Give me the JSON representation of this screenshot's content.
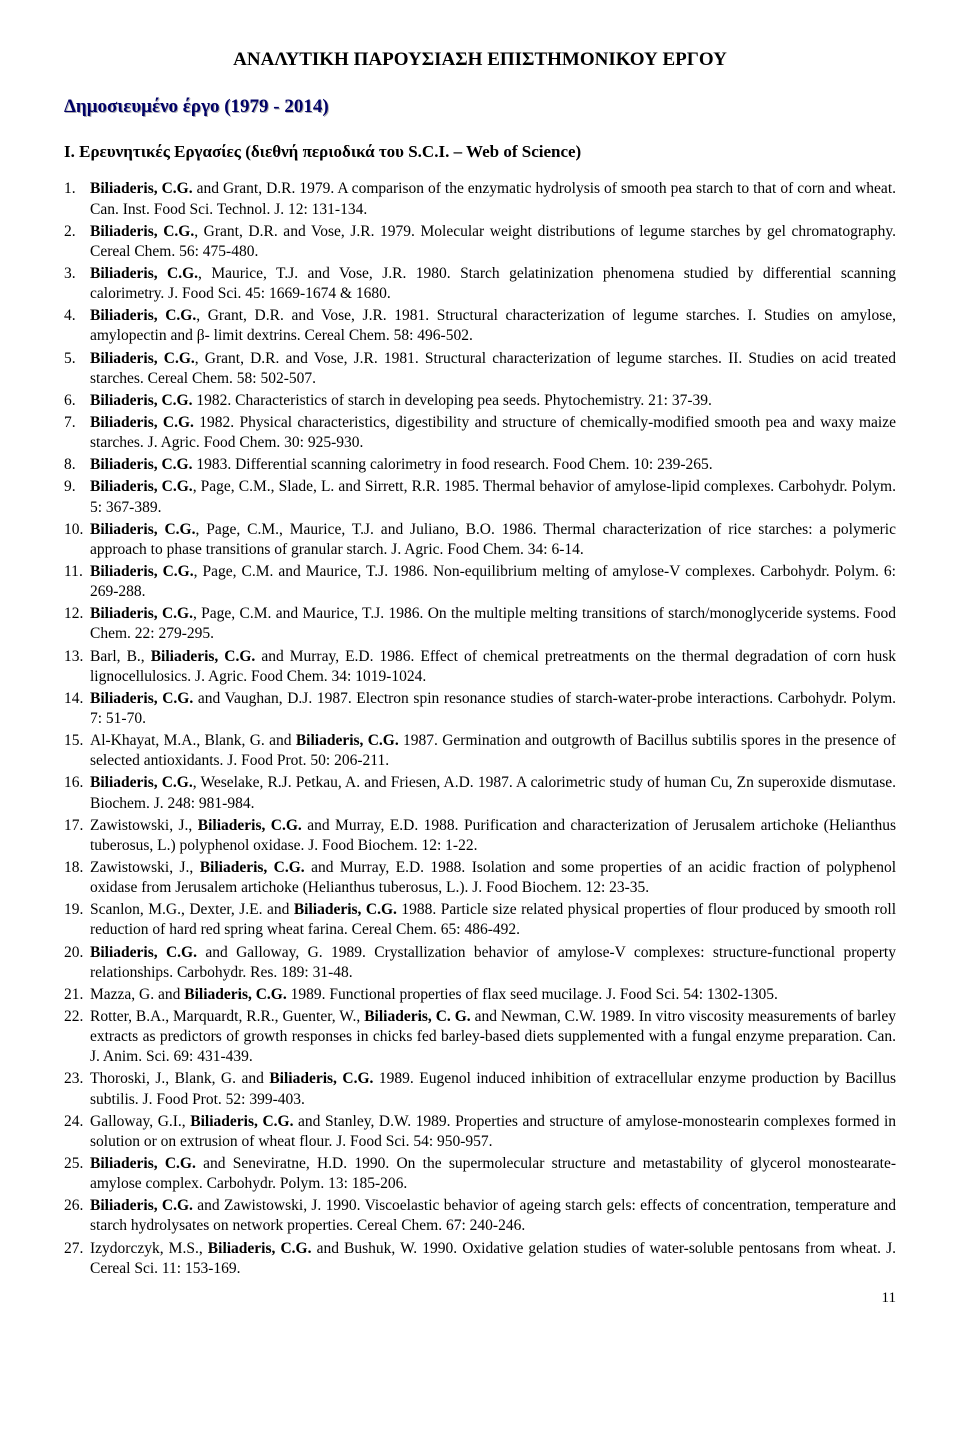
{
  "title": "ΑΝΑΛΥΤΙΚΗ ΠΑΡΟΥΣΙΑΣΗ ΕΠΙΣΤΗΜΟΝΙΚΟΥ ΕΡΓΟΥ",
  "subtitle": "Δημοσιευμένο έργο  (1979 - 2014)",
  "section_heading": "I. Ερευνητικές Εργασίες (διεθνή περιοδικά του S.C.I. – Web of Science)",
  "page_number": "11",
  "references": [
    "<b>Biliaderis, C.G.</b> and Grant, D.R. 1979. A comparison of the enzymatic hydrolysis of smooth pea starch to that of corn and wheat. Can. Inst. Food Sci. Technol. J. 12: 131-134.",
    "<b>Biliaderis, C.G.</b>, Grant, D.R. and Vose, J.R. 1979. Molecular weight distributions of legume starches by gel chromatography. Cereal Chem. 56: 475-480.",
    "<b>Biliaderis, C.G.</b>, Maurice, T.J. and Vose, J.R. 1980. Starch gelatinization phenomena studied by differential scanning calorimetry. J. Food Sci. 45: 1669-1674 &amp; 1680.",
    "<b>Biliaderis, C.G.</b>, Grant, D.R. and Vose, J.R. 1981. Structural characterization of legume starches. I. Studies on amylose, amylopectin and β- limit dextrins. Cereal Chem. 58: 496-502.",
    "<b>Biliaderis, C.G.</b>, Grant, D.R. and Vose, J.R. 1981. Structural characterization of legume starches. II. Studies on acid treated starches. Cereal Chem. 58: 502-507.",
    "<b>Biliaderis, C.G.</b> 1982. Characteristics of starch in developing pea seeds. Phytochemistry. 21: 37-39.",
    "<b>Biliaderis, C.G.</b> 1982. Physical characteristics, digestibility and structure of chemically-modified smooth pea and waxy maize starches. J. Agric. Food Chem. 30: 925-930.",
    "<b>Biliaderis, C.G.</b> 1983. Differential scanning calorimetry in food research. Food Chem. 10: 239-265.",
    "<b>Biliaderis, C.G.</b>, Page, C.M., Slade, L. and Sirrett, R.R. 1985. Thermal behavior of amylose-lipid complexes. Carbohydr. Polym. 5: 367-389.",
    "<b>Biliaderis, C.G.</b>, Page, C.M., Maurice, T.J. and Juliano, B.O. 1986. Thermal characterization of rice starches: a polymeric approach to phase transitions of granular starch. J. Agric. Food Chem. 34: 6-14.",
    "<b>Biliaderis, C.G.</b>, Page, C.M. and Maurice, T.J. 1986. Non-equilibrium melting of amylose-V complexes. Carbohydr. Polym. 6: 269-288.",
    "<b>Biliaderis, C.G.</b>, Page, C.M. and Maurice, T.J. 1986. On the multiple melting transitions of starch/monoglyceride systems. Food Chem. 22: 279-295.",
    "Barl, B., <b>Biliaderis, C.G.</b> and Murray, E.D. 1986. Effect of chemical pretreatments on the thermal degradation of corn husk lignocellulosics. J. Agric. Food Chem. 34: 1019-1024.",
    "<b>Biliaderis, C.G.</b> and Vaughan, D.J. 1987. Electron spin resonance studies of starch-water-probe interactions. Carbohydr. Polym. 7: 51-70.",
    "Al-Khayat, M.A., Blank, G. and <b>Biliaderis, C.G.</b> 1987. Germination and outgrowth of Bacillus subtilis spores in the presence of selected antioxidants. J. Food Prot. 50: 206-211.",
    "<b>Biliaderis, C.G.</b>, Weselake, R.J. Petkau, A. and Friesen, A.D. 1987. A calorimetric study of human Cu, Zn superoxide dismutase. Biochem. J. 248: 981-984.",
    "Zawistowski, J., <b>Biliaderis, C.G.</b> and Murray, E.D. 1988. Purification and characterization of Jerusalem artichoke (Helianthus tuberosus, L.) polyphenol oxidase. J. Food Biochem. 12: 1-22.",
    "Zawistowski, J., <b>Biliaderis, C.G.</b> and Murray, E.D. 1988. Isolation and some properties of an acidic fraction of polyphenol oxidase from Jerusalem artichoke (Helianthus tuberosus, L.). J. Food Biochem. 12: 23-35.",
    "Scanlon, M.G., Dexter, J.E. and <b>Biliaderis, C.G.</b> 1988. Particle size related physical properties of flour produced by smooth roll reduction of hard red spring wheat farina. Cereal Chem. 65: 486-492.",
    "<b>Biliaderis, C.G.</b> and Galloway, G. 1989. Crystallization behavior of amylose-V complexes: structure-functional property relationships. Carbohydr. Res. 189: 31-48.",
    "Mazza, G. and <b>Biliaderis, C.G.</b> 1989. Functional properties of flax seed mucilage. J. Food Sci. 54: 1302-1305.",
    "Rotter, B.A., Marquardt, R.R., Guenter, W., <b>Biliaderis, C. G.</b> and Newman, C.W. 1989. In vitro viscosity measurements of barley extracts as predictors of growth responses in chicks fed barley-based diets supplemented with a fungal enzyme preparation. Can. J. Anim. Sci. 69: 431-439.",
    "Thoroski, J., Blank, G. and <b>Biliaderis, C.G.</b> 1989. Eugenol induced inhibition of extracellular enzyme production by Bacillus subtilis. J. Food Prot. 52: 399-403.",
    "Galloway, G.I., <b>Biliaderis, C.G.</b> and Stanley, D.W. 1989. Properties and structure of amylose-monostearin complexes formed in solution or on extrusion of wheat flour. J. Food Sci. 54: 950-957.",
    "<b>Biliaderis, C.G.</b> and Seneviratne, H.D. 1990. On the supermolecular structure and metastability of glycerol monostearate-amylose complex. Carbohydr. Polym. 13: 185-206.",
    "<b>Biliaderis, C.G.</b> and Zawistowski, J. 1990. Viscoelastic behavior of ageing starch gels: effects of concentration, temperature and starch hydrolysates on network properties. Cereal Chem. 67: 240-246.",
    "Izydorczyk, M.S., <b>Biliaderis, C.G.</b> and Bushuk, W. 1990. Oxidative gelation studies of water-soluble pentosans from wheat. J. Cereal Sci. 11: 153-169."
  ]
}
